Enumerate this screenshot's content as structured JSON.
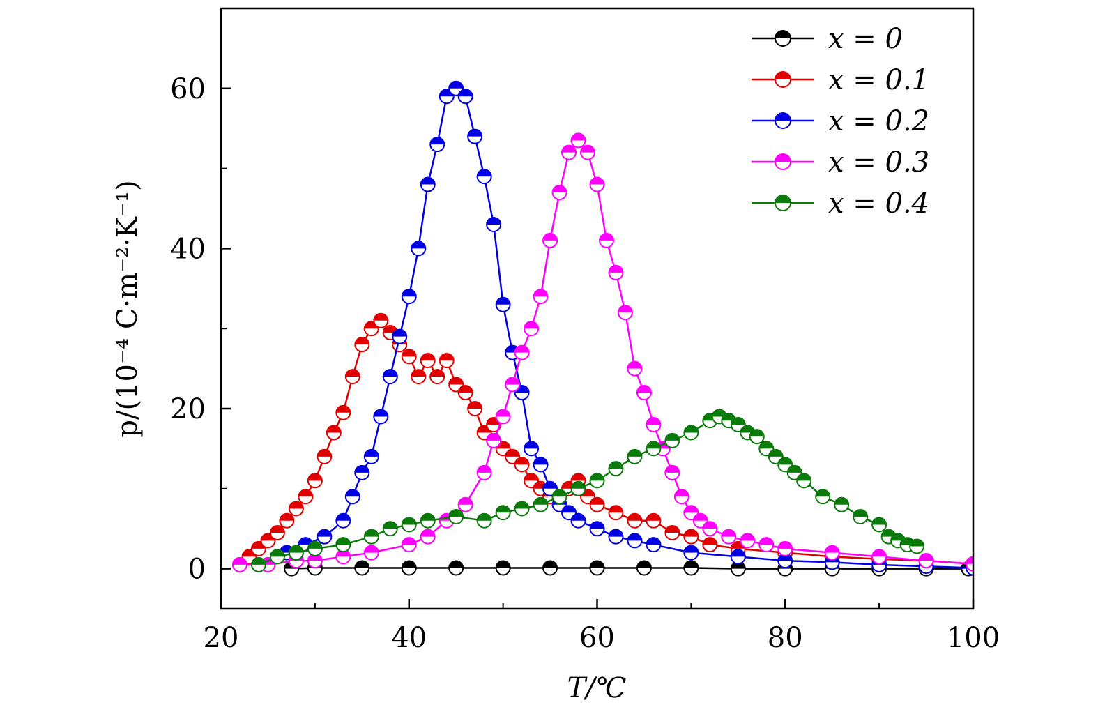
{
  "chart_data": {
    "type": "line",
    "xlabel": "T/℃",
    "ylabel": "p/(10⁻⁴ C·m⁻²·K⁻¹)",
    "xlim": [
      20,
      100
    ],
    "ylim": [
      -5,
      70
    ],
    "xticks": [
      20,
      40,
      60,
      80,
      100
    ],
    "yticks": [
      0,
      20,
      40,
      60
    ],
    "x_tick_labels": [
      "20",
      "40",
      "60",
      "80",
      "100"
    ],
    "y_tick_labels": [
      "0",
      "20",
      "40",
      "60"
    ],
    "grid": false,
    "legend_position": "top-right",
    "series": [
      {
        "name": "x = 0",
        "color": "#000000",
        "points": [
          [
            27.5,
            0.0
          ],
          [
            30,
            0.1
          ],
          [
            35,
            0.1
          ],
          [
            40,
            0.1
          ],
          [
            45,
            0.1
          ],
          [
            50,
            0.1
          ],
          [
            55,
            0.1
          ],
          [
            60,
            0.1
          ],
          [
            65,
            0.1
          ],
          [
            70,
            0.1
          ],
          [
            75,
            0.0
          ],
          [
            80,
            0.0
          ],
          [
            85,
            0.0
          ],
          [
            90,
            0.0
          ],
          [
            95,
            0.0
          ],
          [
            99.5,
            0.0
          ]
        ]
      },
      {
        "name": "x = 0.1",
        "color": "#e00000",
        "points": [
          [
            22,
            0.5
          ],
          [
            23,
            1.5
          ],
          [
            24,
            2.5
          ],
          [
            25,
            3.5
          ],
          [
            26,
            4.5
          ],
          [
            27,
            6
          ],
          [
            28,
            7.5
          ],
          [
            29,
            9
          ],
          [
            30,
            11
          ],
          [
            31,
            14
          ],
          [
            32,
            17
          ],
          [
            33,
            19.5
          ],
          [
            34,
            24
          ],
          [
            35,
            28
          ],
          [
            36,
            30
          ],
          [
            37,
            31
          ],
          [
            38,
            29.5
          ],
          [
            39,
            28
          ],
          [
            40,
            26.5
          ],
          [
            41,
            24
          ],
          [
            42,
            26
          ],
          [
            43,
            24
          ],
          [
            44,
            26
          ],
          [
            45,
            23
          ],
          [
            46,
            22
          ],
          [
            47,
            20
          ],
          [
            48,
            17
          ],
          [
            49,
            18
          ],
          [
            50,
            15
          ],
          [
            51,
            14
          ],
          [
            52,
            13
          ],
          [
            53,
            11
          ],
          [
            54,
            10
          ],
          [
            55,
            9
          ],
          [
            56,
            9
          ],
          [
            57,
            10
          ],
          [
            58,
            11
          ],
          [
            59,
            9
          ],
          [
            60,
            8
          ],
          [
            62,
            7
          ],
          [
            64,
            6
          ],
          [
            66,
            6
          ],
          [
            68,
            4.5
          ],
          [
            70,
            4
          ],
          [
            72,
            3
          ],
          [
            75,
            2.5
          ],
          [
            80,
            2
          ],
          [
            85,
            1.5
          ],
          [
            90,
            1.2
          ],
          [
            95,
            1
          ],
          [
            100,
            0.6
          ]
        ]
      },
      {
        "name": "x = 0.2",
        "color": "#0000e0",
        "points": [
          [
            27,
            2
          ],
          [
            29,
            3
          ],
          [
            31,
            4
          ],
          [
            33,
            6
          ],
          [
            34,
            9
          ],
          [
            35,
            12
          ],
          [
            36,
            14
          ],
          [
            37,
            19
          ],
          [
            38,
            24
          ],
          [
            39,
            29
          ],
          [
            40,
            34
          ],
          [
            41,
            40
          ],
          [
            42,
            48
          ],
          [
            43,
            53
          ],
          [
            44,
            59
          ],
          [
            45,
            60
          ],
          [
            46,
            59
          ],
          [
            47,
            54
          ],
          [
            48,
            49
          ],
          [
            49,
            43
          ],
          [
            50,
            33
          ],
          [
            51,
            27
          ],
          [
            52,
            22
          ],
          [
            53,
            15
          ],
          [
            54,
            13
          ],
          [
            55,
            10
          ],
          [
            56,
            8
          ],
          [
            57,
            7
          ],
          [
            58,
            6
          ],
          [
            60,
            5
          ],
          [
            62,
            4
          ],
          [
            64,
            3.5
          ],
          [
            66,
            3
          ],
          [
            70,
            2
          ],
          [
            75,
            1.5
          ],
          [
            80,
            1
          ],
          [
            85,
            0.8
          ],
          [
            90,
            0.5
          ],
          [
            95,
            0.3
          ],
          [
            100,
            0.1
          ]
        ]
      },
      {
        "name": "x = 0.3",
        "color": "#ff00ff",
        "points": [
          [
            22,
            0.5
          ],
          [
            25,
            0.5
          ],
          [
            28,
            1
          ],
          [
            30,
            1
          ],
          [
            33,
            1.5
          ],
          [
            36,
            2
          ],
          [
            40,
            3
          ],
          [
            42,
            4
          ],
          [
            44,
            6
          ],
          [
            46,
            8
          ],
          [
            48,
            12
          ],
          [
            49,
            16
          ],
          [
            50,
            19
          ],
          [
            51,
            23
          ],
          [
            52,
            27
          ],
          [
            53,
            30
          ],
          [
            54,
            34
          ],
          [
            55,
            41
          ],
          [
            56,
            47
          ],
          [
            57,
            52
          ],
          [
            58,
            53.5
          ],
          [
            59,
            52
          ],
          [
            60,
            48
          ],
          [
            61,
            41
          ],
          [
            62,
            37
          ],
          [
            63,
            32
          ],
          [
            64,
            25
          ],
          [
            65,
            22
          ],
          [
            66,
            18
          ],
          [
            67,
            15
          ],
          [
            68,
            12
          ],
          [
            69,
            9
          ],
          [
            70,
            7
          ],
          [
            71,
            6
          ],
          [
            72,
            5
          ],
          [
            74,
            4
          ],
          [
            76,
            3.5
          ],
          [
            78,
            3
          ],
          [
            80,
            2.5
          ],
          [
            85,
            2
          ],
          [
            90,
            1.5
          ],
          [
            95,
            1
          ],
          [
            100,
            0.6
          ]
        ]
      },
      {
        "name": "x = 0.4",
        "color": "#0a7a0a",
        "points": [
          [
            24,
            0.5
          ],
          [
            26,
            1.5
          ],
          [
            28,
            2
          ],
          [
            30,
            2.5
          ],
          [
            33,
            3
          ],
          [
            36,
            4
          ],
          [
            38,
            5
          ],
          [
            40,
            5.5
          ],
          [
            42,
            6
          ],
          [
            45,
            6.5
          ],
          [
            48,
            6
          ],
          [
            50,
            7
          ],
          [
            52,
            7.5
          ],
          [
            54,
            8
          ],
          [
            56,
            9
          ],
          [
            58,
            10
          ],
          [
            60,
            11
          ],
          [
            62,
            12.5
          ],
          [
            64,
            14
          ],
          [
            66,
            15
          ],
          [
            68,
            16
          ],
          [
            70,
            17
          ],
          [
            72,
            18.5
          ],
          [
            73,
            19
          ],
          [
            74,
            18.5
          ],
          [
            75,
            18
          ],
          [
            76,
            17
          ],
          [
            77,
            16.5
          ],
          [
            78,
            15
          ],
          [
            79,
            14
          ],
          [
            80,
            13
          ],
          [
            81,
            12
          ],
          [
            82,
            11
          ],
          [
            84,
            9
          ],
          [
            86,
            8
          ],
          [
            88,
            6.5
          ],
          [
            90,
            5.5
          ],
          [
            91,
            4
          ],
          [
            92,
            3.5
          ],
          [
            93,
            3
          ],
          [
            94,
            2.8
          ]
        ]
      }
    ]
  }
}
